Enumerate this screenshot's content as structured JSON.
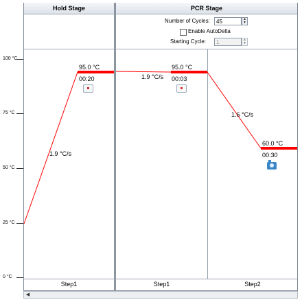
{
  "stages": {
    "hold": {
      "title": "Hold Stage",
      "step_label": "Step1",
      "rate": "1.9 °C/s",
      "temp": "95.0 °C",
      "time": "00:20"
    },
    "pcr": {
      "title": "PCR Stage",
      "cycles_label": "Number of Cycles:",
      "cycles_value": "45",
      "autodelta_label": "Enable AutoDelta",
      "starting_cycle_label": "Starting Cycle:",
      "starting_cycle_value": "1",
      "step1": {
        "label": "Step1",
        "rate": "1.9 °C/s",
        "temp": "95.0 °C",
        "time": "00:03"
      },
      "step2": {
        "label": "Step2",
        "rate": "1.6 °C/s",
        "temp": "60.0 °C",
        "time": "00:30"
      }
    }
  },
  "yaxis": {
    "labels": [
      "100 °C",
      "75 °C",
      "50 °C",
      "25 °C",
      "0 °C"
    ]
  },
  "colors": {
    "ramp_line": "#ff0000",
    "hold_bar": "#ff0000",
    "border": "#7f8a96"
  }
}
